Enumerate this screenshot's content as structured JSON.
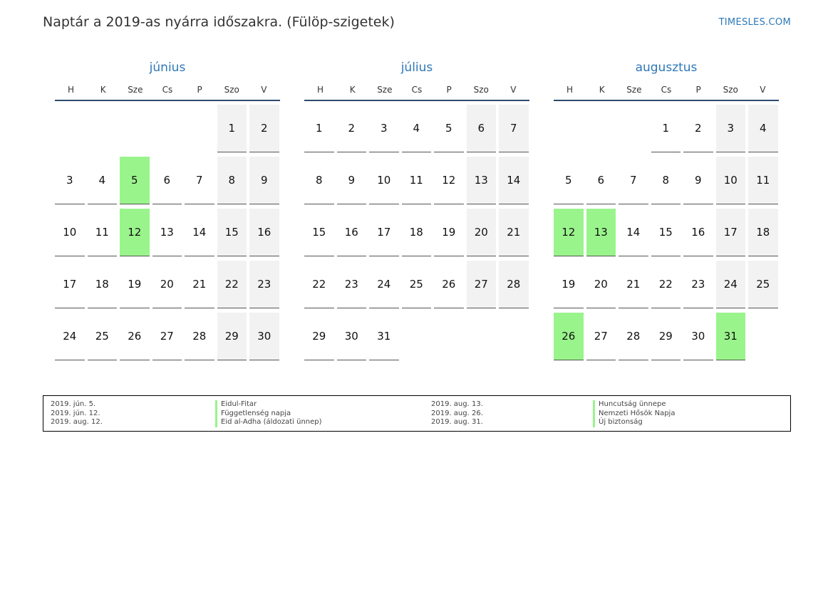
{
  "header": {
    "title": "Naptár a 2019-as nyárra időszakra. (Fülöp-szigetek)",
    "brand": "TIMESLES.COM"
  },
  "weekdays": [
    "H",
    "K",
    "Sze",
    "Cs",
    "P",
    "Szo",
    "V"
  ],
  "colors": {
    "accent": "#2e78b7",
    "holiday": "#9af48c",
    "weekend": "#f2f2f2"
  },
  "months": [
    {
      "name": "június",
      "first_weekday": 5,
      "days": 30,
      "holidays": [
        5,
        12
      ]
    },
    {
      "name": "július",
      "first_weekday": 0,
      "days": 31,
      "holidays": []
    },
    {
      "name": "augusztus",
      "first_weekday": 3,
      "days": 31,
      "holidays": [
        12,
        13,
        26,
        31
      ]
    }
  ],
  "legend": {
    "left": [
      {
        "date": "2019. jún. 5.",
        "name": "Eidul-Fitar"
      },
      {
        "date": "2019. jún. 12.",
        "name": "Függetlenség napja"
      },
      {
        "date": "2019. aug. 12.",
        "name": "Eid al-Adha (áldozati ünnep)"
      }
    ],
    "right": [
      {
        "date": "2019. aug. 13.",
        "name": "Huncutság ünnepe"
      },
      {
        "date": "2019. aug. 26.",
        "name": "Nemzeti Hősök Napja"
      },
      {
        "date": "2019. aug. 31.",
        "name": "Új biztonság"
      }
    ]
  }
}
